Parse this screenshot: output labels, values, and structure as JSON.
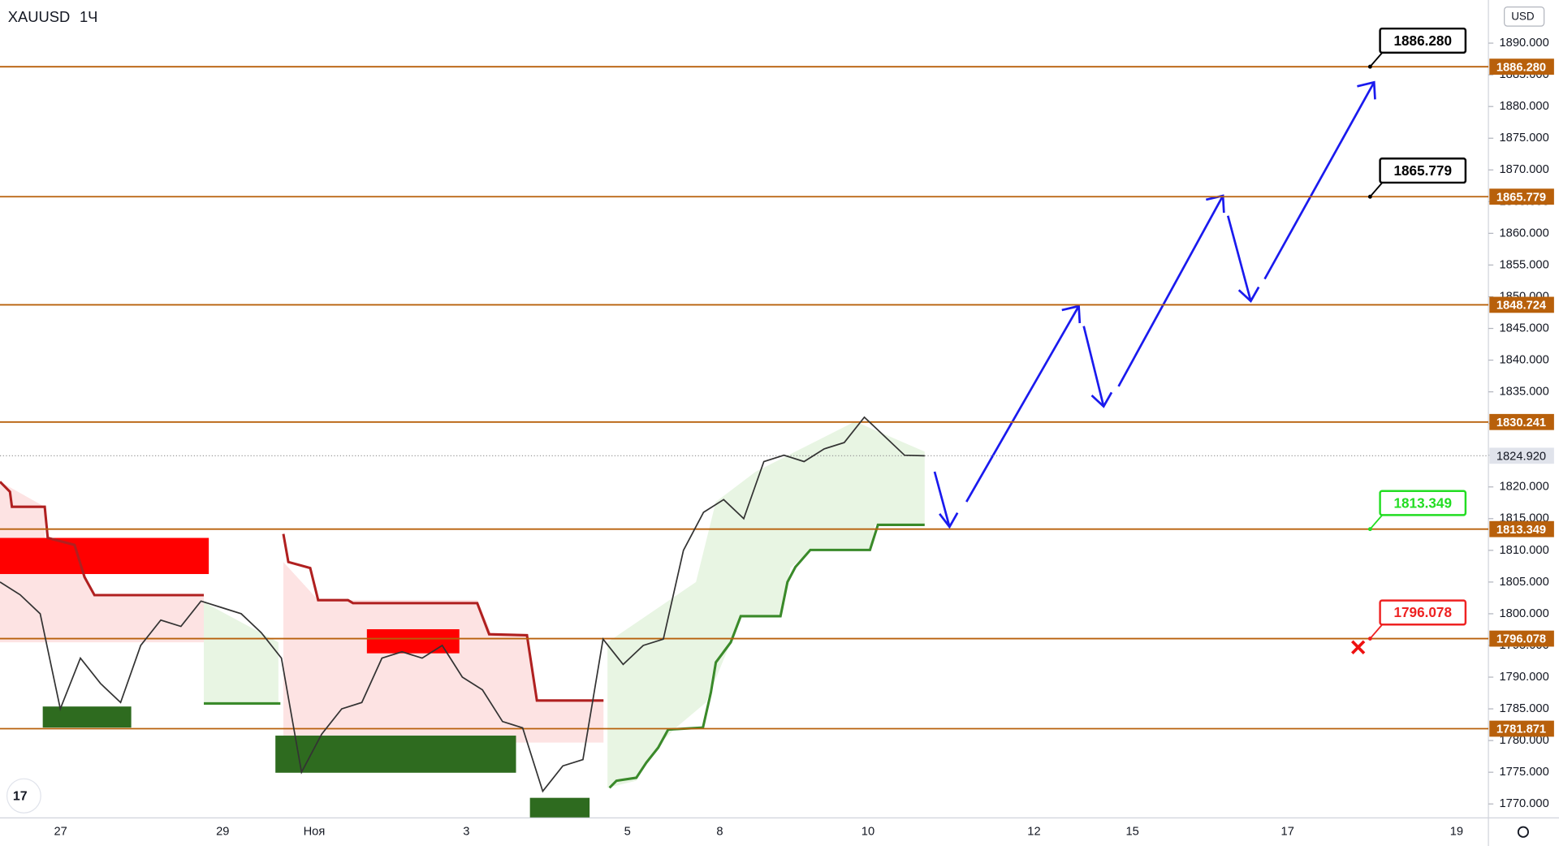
{
  "symbol": "XAUUSD",
  "interval": "1Ч",
  "currency": "USD",
  "chart_data": {
    "type": "line",
    "color": "#333333",
    "values": [
      1805,
      1803,
      1800,
      1785,
      1793,
      1789,
      1786,
      1795,
      1799,
      1798,
      1802,
      1801,
      1800,
      1797,
      1793,
      1775,
      1781,
      1785,
      1786,
      1793,
      1794,
      1793,
      1795,
      1790,
      1788,
      1783,
      1782,
      1772,
      1776,
      1777,
      1796,
      1792,
      1795,
      1796,
      1810,
      1816,
      1818,
      1815,
      1824,
      1825,
      1824,
      1826,
      1827,
      1831,
      1828,
      1825,
      1824.92
    ],
    "ylim": [
      1767.8,
      1896.8
    ],
    "yticks": [
      {
        "value": 1770,
        "label": "1770.000"
      },
      {
        "value": 1775,
        "label": "1775.000"
      },
      {
        "value": 1780,
        "label": "1780.000"
      },
      {
        "value": 1785,
        "label": "1785.000"
      },
      {
        "value": 1790,
        "label": "1790.000"
      },
      {
        "value": 1795,
        "label": "1795.000"
      },
      {
        "value": 1800,
        "label": "1800.000"
      },
      {
        "value": 1805,
        "label": "1805.000"
      },
      {
        "value": 1810,
        "label": "1810.000"
      },
      {
        "value": 1815,
        "label": "1815.000"
      },
      {
        "value": 1820,
        "label": "1820.000"
      },
      {
        "value": 1825,
        "label": "1825.000"
      },
      {
        "value": 1830,
        "label": "1830.000"
      },
      {
        "value": 1835,
        "label": "1835.000"
      },
      {
        "value": 1840,
        "label": "1840.000"
      },
      {
        "value": 1845,
        "label": "1845.000"
      },
      {
        "value": 1850,
        "label": "1850.000"
      },
      {
        "value": 1855,
        "label": "1855.000"
      },
      {
        "value": 1860,
        "label": "1860.000"
      },
      {
        "value": 1865,
        "label": "1865.000"
      },
      {
        "value": 1870,
        "label": "1870.000"
      },
      {
        "value": 1875,
        "label": "1875.000"
      },
      {
        "value": 1880,
        "label": "1880.000"
      },
      {
        "value": 1885,
        "label": "1885.000"
      },
      {
        "value": 1890,
        "label": "1890.000"
      }
    ],
    "x_axis_labels": [
      "27",
      "29",
      "Ноя",
      "3",
      "5",
      "8",
      "10",
      "12",
      "15",
      "17",
      "19"
    ],
    "levels": [
      {
        "value": 1886.28,
        "label": "1886.280"
      },
      {
        "value": 1865.779,
        "label": "1865.779"
      },
      {
        "value": 1848.724,
        "label": "1848.724"
      },
      {
        "value": 1830.241,
        "label": "1830.241"
      },
      {
        "value": 1813.349,
        "label": "1813.349"
      },
      {
        "value": 1796.078,
        "label": "1796.078"
      },
      {
        "value": 1781.871,
        "label": "1781.871"
      }
    ],
    "level_color": "#b8600b",
    "current_price": {
      "value": 1824.92,
      "label": "1824.920"
    },
    "targets": [
      {
        "value": 1886.28,
        "label": "1886.280",
        "color": "#000000"
      },
      {
        "value": 1865.779,
        "label": "1865.779",
        "color": "#000000"
      },
      {
        "value": 1813.349,
        "label": "1813.349",
        "color": "#22dd22"
      },
      {
        "value": 1796.078,
        "label": "1796.078",
        "color": "#ee2222"
      }
    ]
  }
}
